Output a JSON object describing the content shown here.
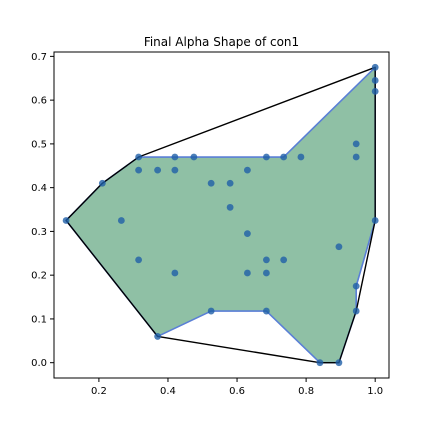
{
  "chart_data": {
    "type": "scatter",
    "title": "Final Alpha Shape of con1",
    "xlabel": "",
    "ylabel": "",
    "xlim": [
      0.07,
      1.04
    ],
    "ylim": [
      -0.035,
      0.71
    ],
    "xticks": [
      0.2,
      0.4,
      0.6,
      0.8,
      1.0
    ],
    "xtick_labels": [
      "0.2",
      "0.4",
      "0.6",
      "0.8",
      "1.0"
    ],
    "yticks": [
      0.0,
      0.1,
      0.2,
      0.3,
      0.4,
      0.5,
      0.6,
      0.7
    ],
    "ytick_labels": [
      "0.0",
      "0.1",
      "0.2",
      "0.3",
      "0.4",
      "0.5",
      "0.6",
      "0.7"
    ],
    "grid": false,
    "legend": "none",
    "colors": {
      "points": "#1f5fa8",
      "alpha_fill": "#8fc0a5",
      "alpha_edge": "#5a7fd6",
      "hull_edge": "#000000"
    },
    "points": [
      [
        1.0,
        0.675
      ],
      [
        1.0,
        0.645
      ],
      [
        1.0,
        0.62
      ],
      [
        1.0,
        0.325
      ],
      [
        0.315,
        0.47
      ],
      [
        0.42,
        0.47
      ],
      [
        0.475,
        0.47
      ],
      [
        0.685,
        0.47
      ],
      [
        0.735,
        0.47
      ],
      [
        0.785,
        0.47
      ],
      [
        0.945,
        0.5
      ],
      [
        0.945,
        0.47
      ],
      [
        0.21,
        0.41
      ],
      [
        0.315,
        0.44
      ],
      [
        0.37,
        0.44
      ],
      [
        0.42,
        0.44
      ],
      [
        0.525,
        0.41
      ],
      [
        0.58,
        0.41
      ],
      [
        0.63,
        0.44
      ],
      [
        0.105,
        0.325
      ],
      [
        0.265,
        0.325
      ],
      [
        0.58,
        0.355
      ],
      [
        0.63,
        0.295
      ],
      [
        0.315,
        0.235
      ],
      [
        0.42,
        0.205
      ],
      [
        0.63,
        0.205
      ],
      [
        0.685,
        0.235
      ],
      [
        0.685,
        0.205
      ],
      [
        0.735,
        0.235
      ],
      [
        0.895,
        0.265
      ],
      [
        0.945,
        0.175
      ],
      [
        0.945,
        0.118
      ],
      [
        0.525,
        0.118
      ],
      [
        0.685,
        0.118
      ],
      [
        0.37,
        0.06
      ],
      [
        0.84,
        0.0
      ],
      [
        0.895,
        0.0
      ]
    ],
    "alpha_shape": [
      [
        0.105,
        0.325
      ],
      [
        0.21,
        0.41
      ],
      [
        0.315,
        0.47
      ],
      [
        0.735,
        0.47
      ],
      [
        1.0,
        0.675
      ],
      [
        1.0,
        0.325
      ],
      [
        0.945,
        0.175
      ],
      [
        0.945,
        0.118
      ],
      [
        0.895,
        0.0
      ],
      [
        0.84,
        0.0
      ],
      [
        0.685,
        0.118
      ],
      [
        0.525,
        0.118
      ],
      [
        0.37,
        0.06
      ]
    ],
    "convex_hull": [
      [
        0.105,
        0.325
      ],
      [
        0.21,
        0.41
      ],
      [
        0.315,
        0.47
      ],
      [
        1.0,
        0.675
      ],
      [
        1.0,
        0.325
      ],
      [
        0.945,
        0.118
      ],
      [
        0.895,
        0.0
      ],
      [
        0.84,
        0.0
      ],
      [
        0.37,
        0.06
      ]
    ]
  }
}
